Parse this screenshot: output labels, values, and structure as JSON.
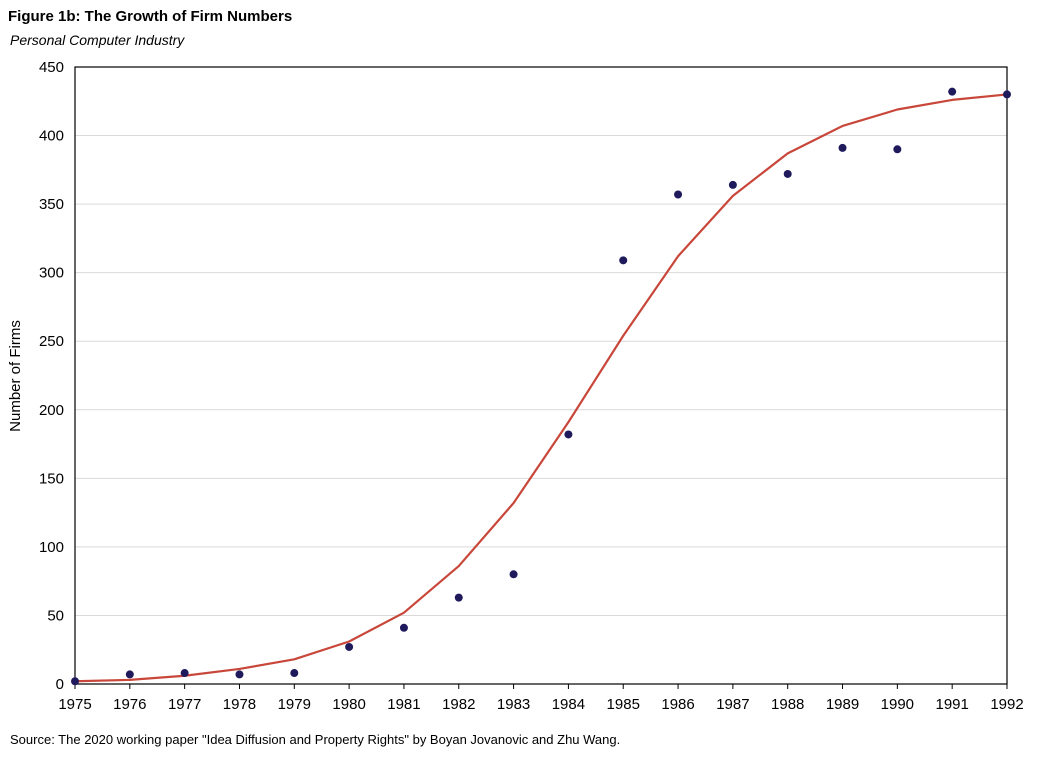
{
  "header": {
    "title": "Figure 1b: The Growth of Firm Numbers",
    "subtitle": "Personal Computer Industry"
  },
  "footer": {
    "source": "Source: The 2020  working paper \"Idea Diffusion and Property Rights\" by Boyan Jovanovic and Zhu Wang."
  },
  "chart_data": {
    "type": "scatter",
    "title": "Figure 1b: The Growth of Firm Numbers",
    "subtitle": "Personal Computer Industry",
    "xlabel": "",
    "ylabel": "Number of Firms",
    "xlim": [
      1975,
      1992
    ],
    "ylim": [
      0,
      450
    ],
    "x_ticks": [
      "1975",
      "1976",
      "1977",
      "1978",
      "1979",
      "1980",
      "1981",
      "1982",
      "1983",
      "1984",
      "1985",
      "1986",
      "1987",
      "1988",
      "1989",
      "1990",
      "1991",
      "1992"
    ],
    "y_ticks": [
      "0",
      "50",
      "100",
      "150",
      "200",
      "250",
      "300",
      "350",
      "400",
      "450"
    ],
    "grid": "horizontal",
    "legend": "none",
    "colors": {
      "points": "#1f1a5c",
      "fit_line": "#c8473a",
      "grid": "#d9d9d9",
      "axis": "#000000"
    },
    "series": [
      {
        "kind": "scatter",
        "x": [
          1975,
          1976,
          1977,
          1978,
          1979,
          1980,
          1981,
          1982,
          1983,
          1984,
          1985,
          1986,
          1987,
          1988,
          1989,
          1990,
          1991,
          1992
        ],
        "y": [
          2,
          7,
          8,
          7,
          8,
          27,
          41,
          63,
          80,
          182,
          309,
          357,
          364,
          372,
          391,
          390,
          432,
          430
        ]
      },
      {
        "kind": "line",
        "x": [
          1975,
          1976,
          1977,
          1978,
          1979,
          1980,
          1981,
          1982,
          1983,
          1984,
          1985,
          1986,
          1987,
          1988,
          1989,
          1990,
          1991,
          1992
        ],
        "y": [
          2,
          3,
          6,
          11,
          18,
          31,
          52,
          86,
          132,
          191,
          254,
          312,
          356,
          387,
          407,
          419,
          426,
          430
        ]
      }
    ]
  }
}
